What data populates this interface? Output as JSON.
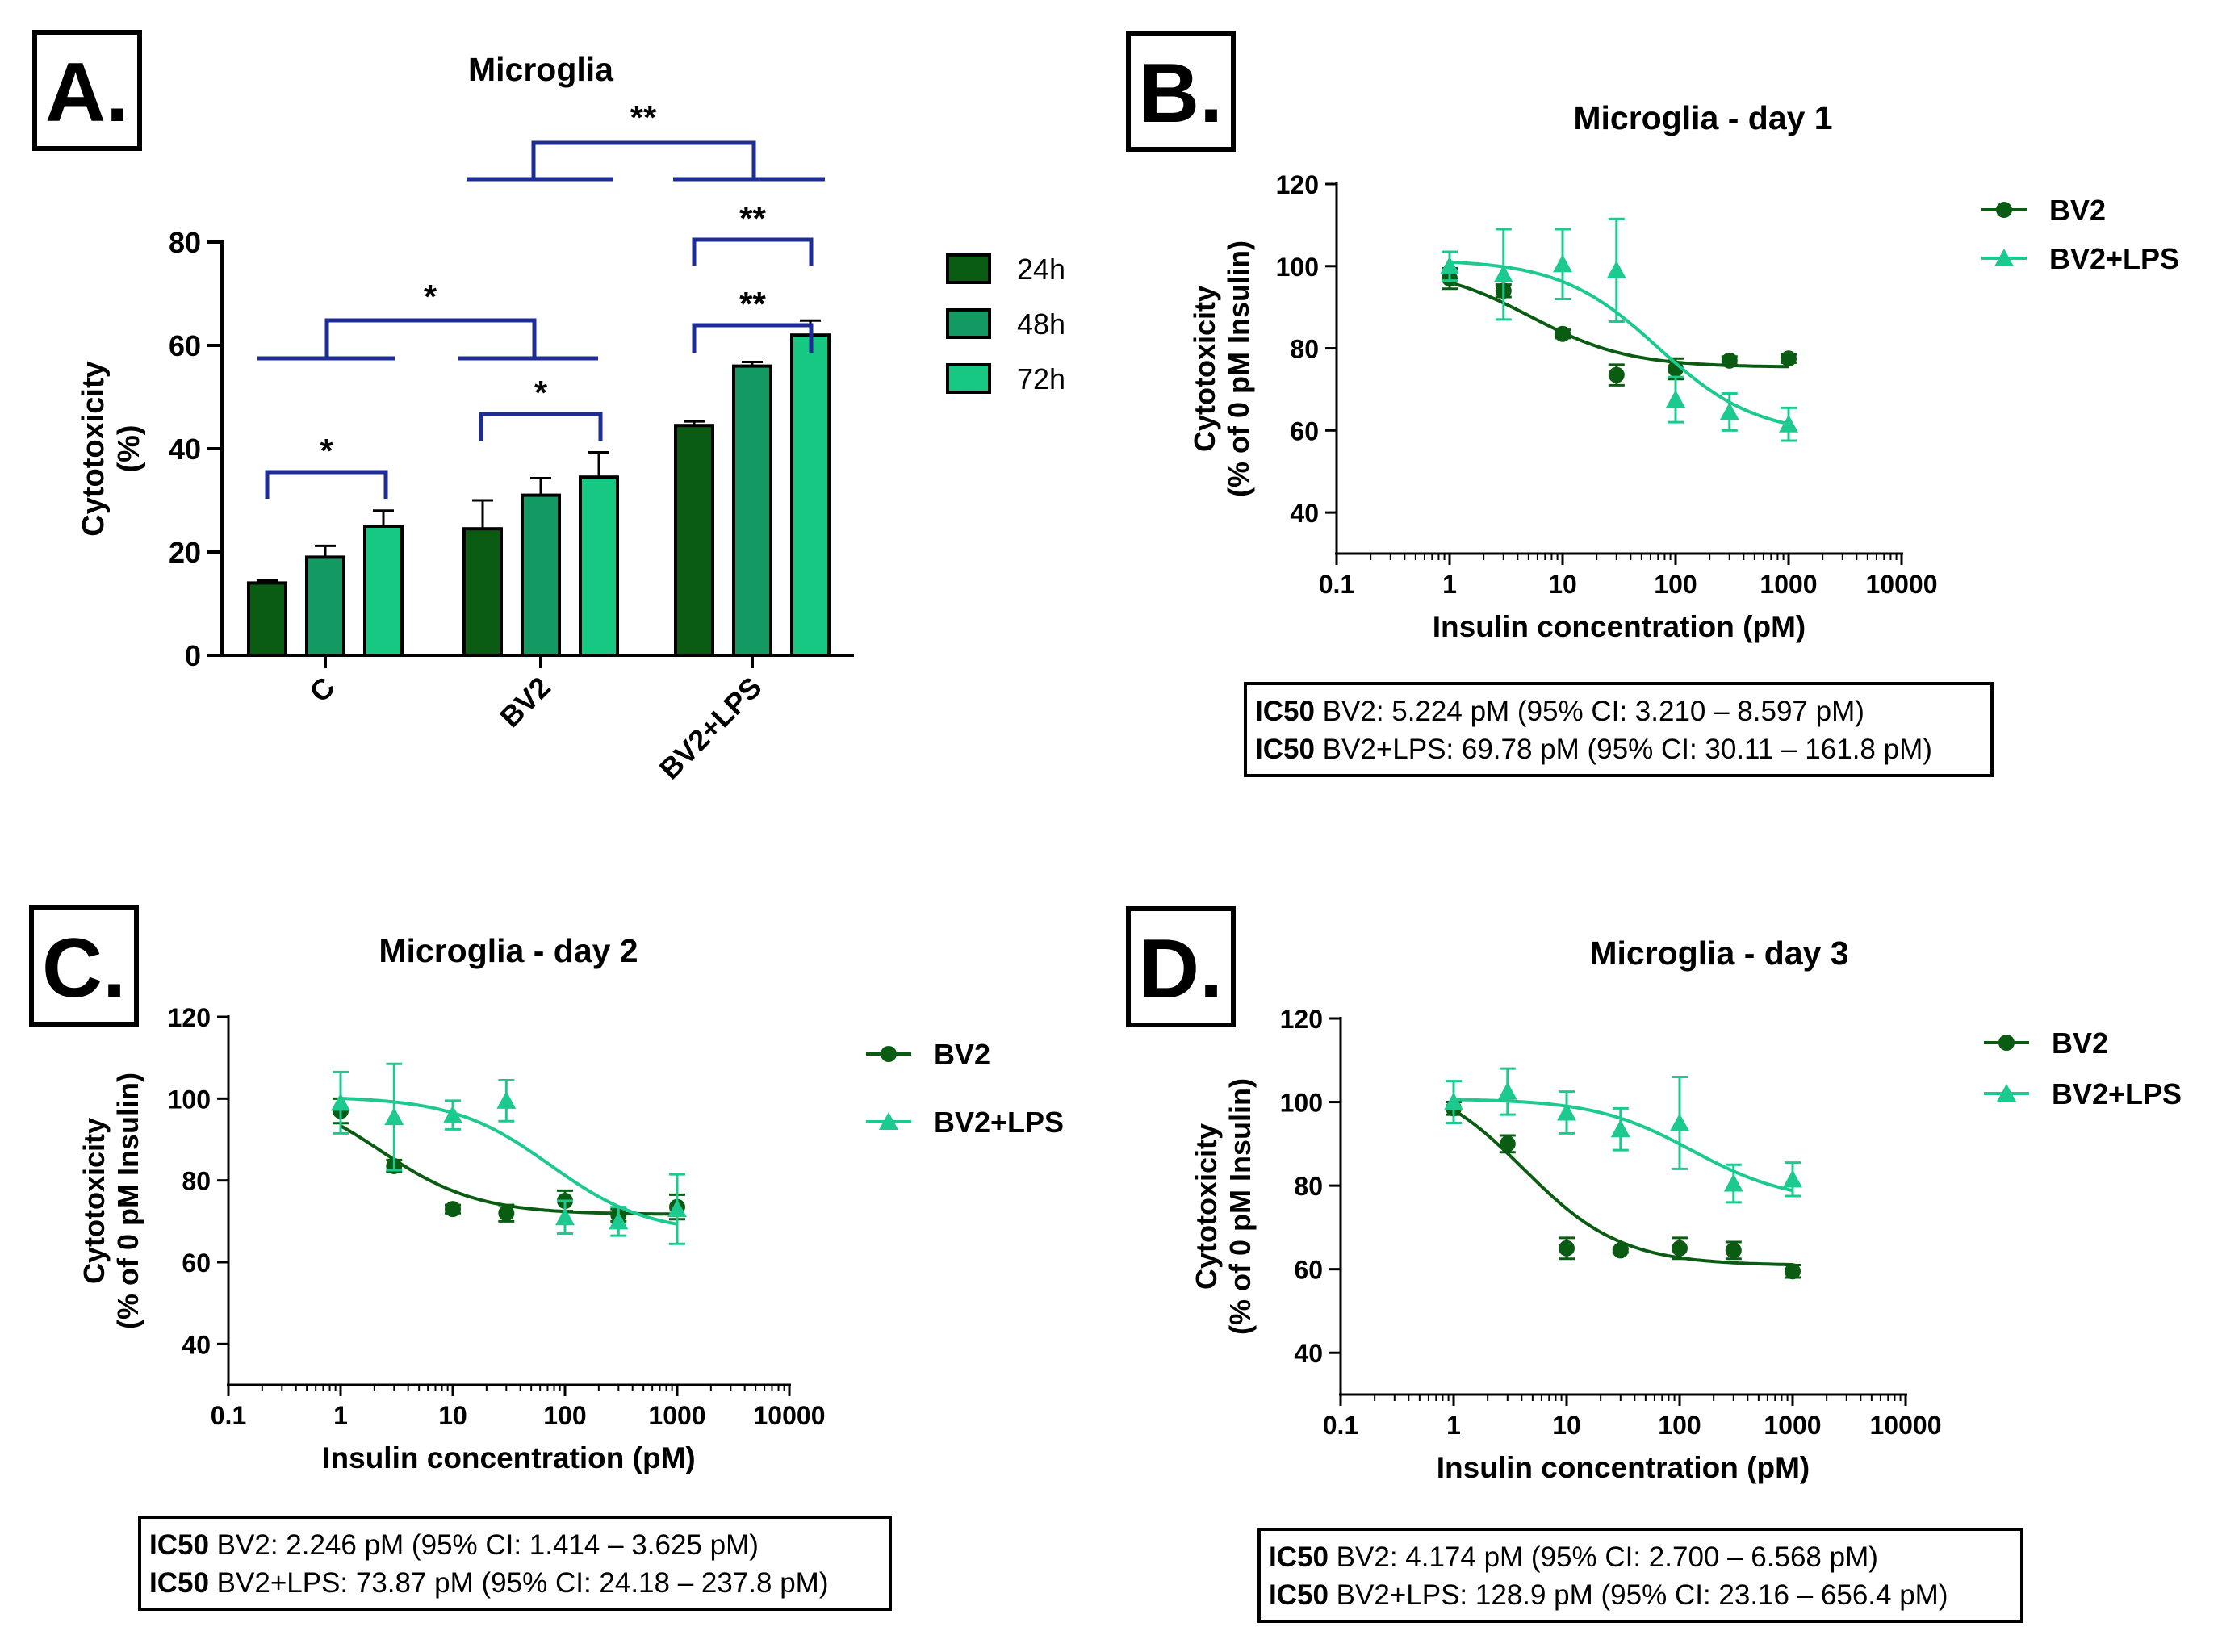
{
  "colors": {
    "c24": "#0a5c12",
    "c48": "#129a62",
    "c72": "#17c882",
    "bv2": "#0a5c12",
    "lps": "#1cc98e",
    "bracket": "#1e2c96",
    "ink": "#000000"
  },
  "chart_data": [
    {
      "panel": "A.",
      "type": "bar",
      "title": "Microglia",
      "ylabel_line1": "Cytotoxicity",
      "ylabel_line2": "(%)",
      "ylim": [
        0,
        80
      ],
      "yticks": [
        "0",
        "20",
        "40",
        "60",
        "80"
      ],
      "categories": [
        "C",
        "BV2",
        "BV2+LPS"
      ],
      "series": [
        {
          "name": "24h",
          "values": [
            14,
            24.5,
            44.5
          ],
          "errors": [
            0.5,
            5.5,
            0.8
          ]
        },
        {
          "name": "48h",
          "values": [
            19,
            31,
            56
          ],
          "errors": [
            2.2,
            3.3,
            0.8
          ]
        },
        {
          "name": "72h",
          "values": [
            25,
            34.5,
            62
          ],
          "errors": [
            3,
            4.8,
            2.8
          ]
        }
      ],
      "significance": [
        "*",
        "*",
        "*",
        "**",
        "**",
        "**"
      ]
    },
    {
      "panel": "B.",
      "type": "line",
      "title": "Microglia - day 1",
      "xlabel": "Insulin concentration (pM)",
      "ylabel_line1": "Cytotoxicity",
      "ylabel_line2": "(% of 0 pM Insulin)",
      "xscale": "log",
      "xticks": [
        "0.1",
        "1",
        "10",
        "100",
        "1000",
        "10000"
      ],
      "ylim": [
        30,
        120
      ],
      "yticks": [
        "40",
        "60",
        "80",
        "100",
        "120"
      ],
      "series": [
        {
          "name": "BV2",
          "marker": "circle",
          "x": [
            1,
            3,
            10,
            30,
            100,
            300,
            1000
          ],
          "y": [
            97,
            94,
            83.5,
            73.5,
            75,
            77,
            77.5
          ],
          "err": [
            2.5,
            1.5,
            1,
            2.5,
            2.5,
            1,
            1
          ],
          "fit": {
            "top": 100,
            "bottom": 75.4,
            "ic50": 5.224,
            "hill": 1
          }
        },
        {
          "name": "BV2+LPS",
          "marker": "triangle",
          "x": [
            1,
            3,
            10,
            30,
            100,
            300,
            1000
          ],
          "y": [
            100,
            98,
            100.5,
            99,
            67.5,
            64.5,
            61.5
          ],
          "err": [
            3.5,
            11,
            8.5,
            12.5,
            5.5,
            4.5,
            4
          ],
          "fit": {
            "top": 101.6,
            "bottom": 58.8,
            "ic50": 69.78,
            "hill": 1
          }
        }
      ],
      "ic50_lines": [
        {
          "bold": "IC50",
          "text": " BV2: 5.224 pM (95% CI: 3.210 – 8.597 pM)"
        },
        {
          "bold": "IC50",
          "text": " BV2+LPS: 69.78 pM (95% CI: 30.11 – 161.8 pM)"
        }
      ]
    },
    {
      "panel": "C.",
      "type": "line",
      "title": "Microglia - day 2",
      "xlabel": "Insulin concentration (pM)",
      "ylabel_line1": "Cytotoxicity",
      "ylabel_line2": "(% of 0 pM Insulin)",
      "xscale": "log",
      "xticks": [
        "0.1",
        "1",
        "10",
        "100",
        "1000",
        "10000"
      ],
      "ylim": [
        30,
        120
      ],
      "yticks": [
        "40",
        "60",
        "80",
        "100",
        "120"
      ],
      "series": [
        {
          "name": "BV2",
          "marker": "circle",
          "x": [
            1,
            3,
            10,
            30,
            100,
            300,
            1000
          ],
          "y": [
            97,
            83.5,
            73,
            72,
            75,
            71.5,
            73.5
          ],
          "err": [
            3,
            1.5,
            1,
            2,
            2.5,
            1.5,
            3
          ],
          "fit": {
            "top": 103,
            "bottom": 71.7,
            "ic50": 2.246,
            "hill": 1
          }
        },
        {
          "name": "BV2+LPS",
          "marker": "triangle",
          "x": [
            1,
            3,
            10,
            30,
            100,
            300,
            1000
          ],
          "y": [
            99,
            95.5,
            96,
            99.5,
            71,
            70,
            73
          ],
          "err": [
            7.5,
            13,
            3.5,
            5,
            4,
            3.5,
            8.5
          ],
          "fit": {
            "top": 100.5,
            "bottom": 67,
            "ic50": 73.87,
            "hill": 1
          }
        }
      ],
      "ic50_lines": [
        {
          "bold": "IC50",
          "text": " BV2: 2.246 pM (95% CI: 1.414 – 3.625 pM)"
        },
        {
          "bold": "IC50",
          "text": " BV2+LPS: 73.87 pM (95% CI: 24.18 – 237.8 pM)"
        }
      ]
    },
    {
      "panel": "D.",
      "type": "line",
      "title": "Microglia - day 3",
      "xlabel": "Insulin concentration (pM)",
      "ylabel_line1": "Cytotoxicity",
      "ylabel_line2": "(% of 0 pM Insulin)",
      "xscale": "log",
      "xticks": [
        "0.1",
        "1",
        "10",
        "100",
        "1000",
        "10000"
      ],
      "ylim": [
        30,
        120
      ],
      "yticks": [
        "40",
        "60",
        "80",
        "100",
        "120"
      ],
      "series": [
        {
          "name": "BV2",
          "marker": "circle",
          "x": [
            1,
            3,
            10,
            30,
            100,
            300,
            1000
          ],
          "y": [
            98.5,
            90,
            65,
            64.5,
            65,
            64.5,
            59.5
          ],
          "err": [
            1.5,
            2,
            2.5,
            0.5,
            2.5,
            2,
            1.5
          ],
          "fit": {
            "top": 107,
            "bottom": 60.9,
            "ic50": 4.174,
            "hill": 1
          }
        },
        {
          "name": "BV2+LPS",
          "marker": "triangle",
          "x": [
            1,
            3,
            10,
            30,
            100,
            300,
            1000
          ],
          "y": [
            100,
            102.5,
            97.5,
            93.5,
            95,
            80.5,
            81.5
          ],
          "err": [
            5,
            5.5,
            5,
            5,
            11,
            4.5,
            4
          ],
          "fit": {
            "top": 100.8,
            "bottom": 76,
            "ic50": 128.9,
            "hill": 1
          }
        }
      ],
      "ic50_lines": [
        {
          "bold": "IC50",
          "text": " BV2: 4.174 pM (95% CI: 2.700 – 6.568 pM)"
        },
        {
          "bold": "IC50",
          "text": " BV2+LPS: 128.9 pM (95% CI: 23.16 – 656.4 pM)"
        }
      ]
    }
  ]
}
